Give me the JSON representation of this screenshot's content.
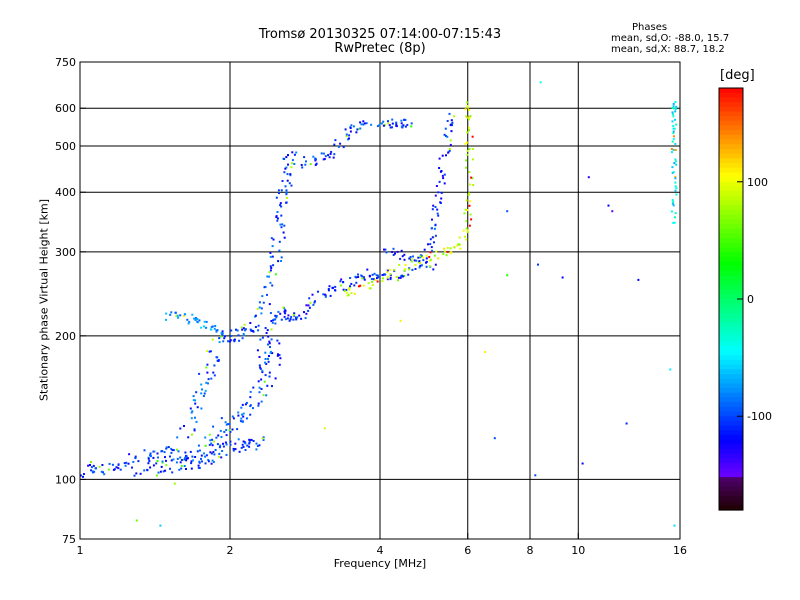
{
  "chart_data": {
    "type": "scatter",
    "title": "Tromsø 20130325 07:14:00-07:15:43",
    "subtitle": "RwPretec (8p)",
    "xlabel": "Frequency [MHz]",
    "ylabel": "Stationary phase Virtual Height [km]",
    "x_scale": "log",
    "y_scale": "log",
    "xlim": [
      1,
      16
    ],
    "ylim": [
      75,
      750
    ],
    "grid": true,
    "x_ticks": [
      {
        "v": 1,
        "label": "1"
      },
      {
        "v": 2,
        "label": "2"
      },
      {
        "v": 4,
        "label": "4"
      },
      {
        "v": 6,
        "label": "6"
      },
      {
        "v": 8,
        "label": "8"
      },
      {
        "v": 10,
        "label": "10"
      },
      {
        "v": 16,
        "label": "16"
      }
    ],
    "y_ticks": [
      {
        "v": 75,
        "label": "75"
      },
      {
        "v": 100,
        "label": "100"
      },
      {
        "v": 200,
        "label": "200"
      },
      {
        "v": 300,
        "label": "300"
      },
      {
        "v": 400,
        "label": "400"
      },
      {
        "v": 500,
        "label": "500"
      },
      {
        "v": 600,
        "label": "600"
      },
      {
        "v": 750,
        "label": "750"
      }
    ],
    "colorbar": {
      "label": "[deg]",
      "range": [
        -180,
        180
      ],
      "ticks": [
        {
          "v": 100,
          "label": "100"
        },
        {
          "v": 0,
          "label": "0"
        },
        {
          "v": -100,
          "label": "-100"
        }
      ]
    },
    "phases": {
      "heading": "Phases",
      "line_o": "mean, sd,O: -88.0, 15.7",
      "line_x": "mean, sd,X:  88.7, 18.2"
    },
    "traces": [
      {
        "points": [
          [
            1.0,
            98
          ],
          [
            1.05,
            106
          ],
          [
            1.1,
            105
          ],
          [
            1.2,
            107
          ],
          [
            1.3,
            112
          ],
          [
            1.4,
            113
          ],
          [
            1.5,
            114
          ],
          [
            1.6,
            112
          ],
          [
            1.7,
            108
          ],
          [
            1.8,
            110
          ],
          [
            1.9,
            115
          ],
          [
            2.0,
            117
          ],
          [
            2.1,
            118
          ],
          [
            2.2,
            118
          ],
          [
            2.3,
            120
          ]
        ],
        "phase": -105,
        "spread": 0.03
      },
      {
        "points": [
          [
            1.3,
            103
          ],
          [
            1.4,
            106
          ],
          [
            1.5,
            108
          ],
          [
            1.6,
            107
          ],
          [
            1.7,
            112
          ],
          [
            1.8,
            118
          ],
          [
            1.9,
            125
          ],
          [
            2.0,
            130
          ],
          [
            2.1,
            135
          ],
          [
            2.2,
            140
          ],
          [
            2.3,
            150
          ],
          [
            2.4,
            160
          ],
          [
            2.45,
            175
          ],
          [
            2.5,
            190
          ]
        ],
        "phase": -100,
        "spread": 0.04
      },
      {
        "points": [
          [
            1.6,
            120
          ],
          [
            1.7,
            135
          ],
          [
            1.75,
            150
          ],
          [
            1.8,
            165
          ],
          [
            1.85,
            180
          ],
          [
            1.9,
            200
          ]
        ],
        "phase": -95,
        "spread": 0.035
      },
      {
        "points": [
          [
            1.9,
            200
          ],
          [
            2.0,
            200
          ],
          [
            2.1,
            202
          ],
          [
            2.2,
            205
          ],
          [
            2.3,
            220
          ],
          [
            2.4,
            255
          ],
          [
            2.45,
            285
          ],
          [
            2.5,
            320
          ],
          [
            2.52,
            360
          ],
          [
            2.55,
            390
          ],
          [
            2.6,
            420
          ],
          [
            2.63,
            460
          ],
          [
            2.65,
            480
          ]
        ],
        "phase": -102,
        "spread": 0.03
      },
      {
        "points": [
          [
            1.5,
            220
          ],
          [
            1.6,
            220
          ],
          [
            1.7,
            215
          ],
          [
            1.8,
            210
          ],
          [
            1.9,
            205
          ]
        ],
        "phase": -75,
        "spread": 0.02
      },
      {
        "points": [
          [
            2.3,
            170
          ],
          [
            2.35,
            190
          ],
          [
            2.4,
            210
          ],
          [
            2.5,
            225
          ],
          [
            2.6,
            220
          ],
          [
            2.7,
            215
          ],
          [
            2.8,
            225
          ],
          [
            3.0,
            240
          ],
          [
            3.2,
            250
          ],
          [
            3.4,
            258
          ],
          [
            3.6,
            265
          ],
          [
            3.8,
            270
          ],
          [
            4.0,
            268
          ],
          [
            4.3,
            268
          ],
          [
            4.6,
            272
          ],
          [
            5.0,
            285
          ]
        ],
        "phase": -110,
        "spread": 0.025
      },
      {
        "points": [
          [
            2.8,
            460
          ],
          [
            3.0,
            470
          ],
          [
            3.2,
            480
          ],
          [
            3.4,
            520
          ],
          [
            3.6,
            550
          ],
          [
            3.8,
            555
          ]
        ],
        "phase": -105,
        "spread": 0.025
      },
      {
        "points": [
          [
            4.0,
            545
          ],
          [
            4.2,
            560
          ],
          [
            4.4,
            555
          ],
          [
            4.6,
            560
          ]
        ],
        "phase": -105,
        "spread": 0.02
      },
      {
        "points": [
          [
            4.1,
            300
          ],
          [
            4.4,
            295
          ],
          [
            4.8,
            290
          ],
          [
            5.2,
            280
          ]
        ],
        "phase": -110,
        "spread": 0.02
      },
      {
        "points": [
          [
            5.0,
            300
          ],
          [
            5.1,
            330
          ],
          [
            5.2,
            370
          ],
          [
            5.3,
            420
          ],
          [
            5.4,
            480
          ],
          [
            5.5,
            540
          ],
          [
            5.55,
            580
          ]
        ],
        "phase": -110,
        "spread": 0.02
      },
      {
        "points": [
          [
            3.4,
            245
          ],
          [
            3.6,
            250
          ],
          [
            4.0,
            265
          ],
          [
            4.5,
            280
          ],
          [
            5.0,
            292
          ],
          [
            5.5,
            300
          ],
          [
            5.8,
            310
          ],
          [
            6.0,
            340
          ],
          [
            6.05,
            400
          ],
          [
            6.05,
            480
          ],
          [
            6.0,
            560
          ],
          [
            5.95,
            620
          ]
        ],
        "phase": 90,
        "spread": 0.02
      },
      {
        "points": [
          [
            15.5,
            340
          ],
          [
            15.6,
            400
          ],
          [
            15.6,
            460
          ],
          [
            15.5,
            520
          ],
          [
            15.6,
            580
          ],
          [
            15.6,
            620
          ]
        ],
        "phase": -45,
        "spread": 0.01
      }
    ],
    "isolated_points": [
      [
        [
          1.45,
          80
        ],
        -60
      ],
      [
        [
          1.3,
          82
        ],
        60
      ],
      [
        [
          1.55,
          98
        ],
        75
      ],
      [
        [
          3.1,
          128
        ],
        90
      ],
      [
        [
          4.4,
          215
        ],
        110
      ],
      [
        [
          6.5,
          185
        ],
        110
      ],
      [
        [
          6.8,
          122
        ],
        -100
      ],
      [
        [
          7.2,
          365
        ],
        -95
      ],
      [
        [
          7.2,
          268
        ],
        40
      ],
      [
        [
          8.2,
          102
        ],
        -100
      ],
      [
        [
          8.3,
          282
        ],
        -105
      ],
      [
        [
          8.4,
          680
        ],
        -45
      ],
      [
        [
          9.3,
          265
        ],
        -120
      ],
      [
        [
          10.2,
          108
        ],
        -120
      ],
      [
        [
          10.5,
          430
        ],
        -130
      ],
      [
        [
          11.5,
          375
        ],
        -120
      ],
      [
        [
          11.7,
          365
        ],
        -150
      ],
      [
        [
          12.5,
          131
        ],
        -110
      ],
      [
        [
          13.2,
          262
        ],
        -120
      ],
      [
        [
          15.3,
          170
        ],
        -50
      ],
      [
        [
          15.6,
          80
        ],
        -55
      ]
    ]
  }
}
